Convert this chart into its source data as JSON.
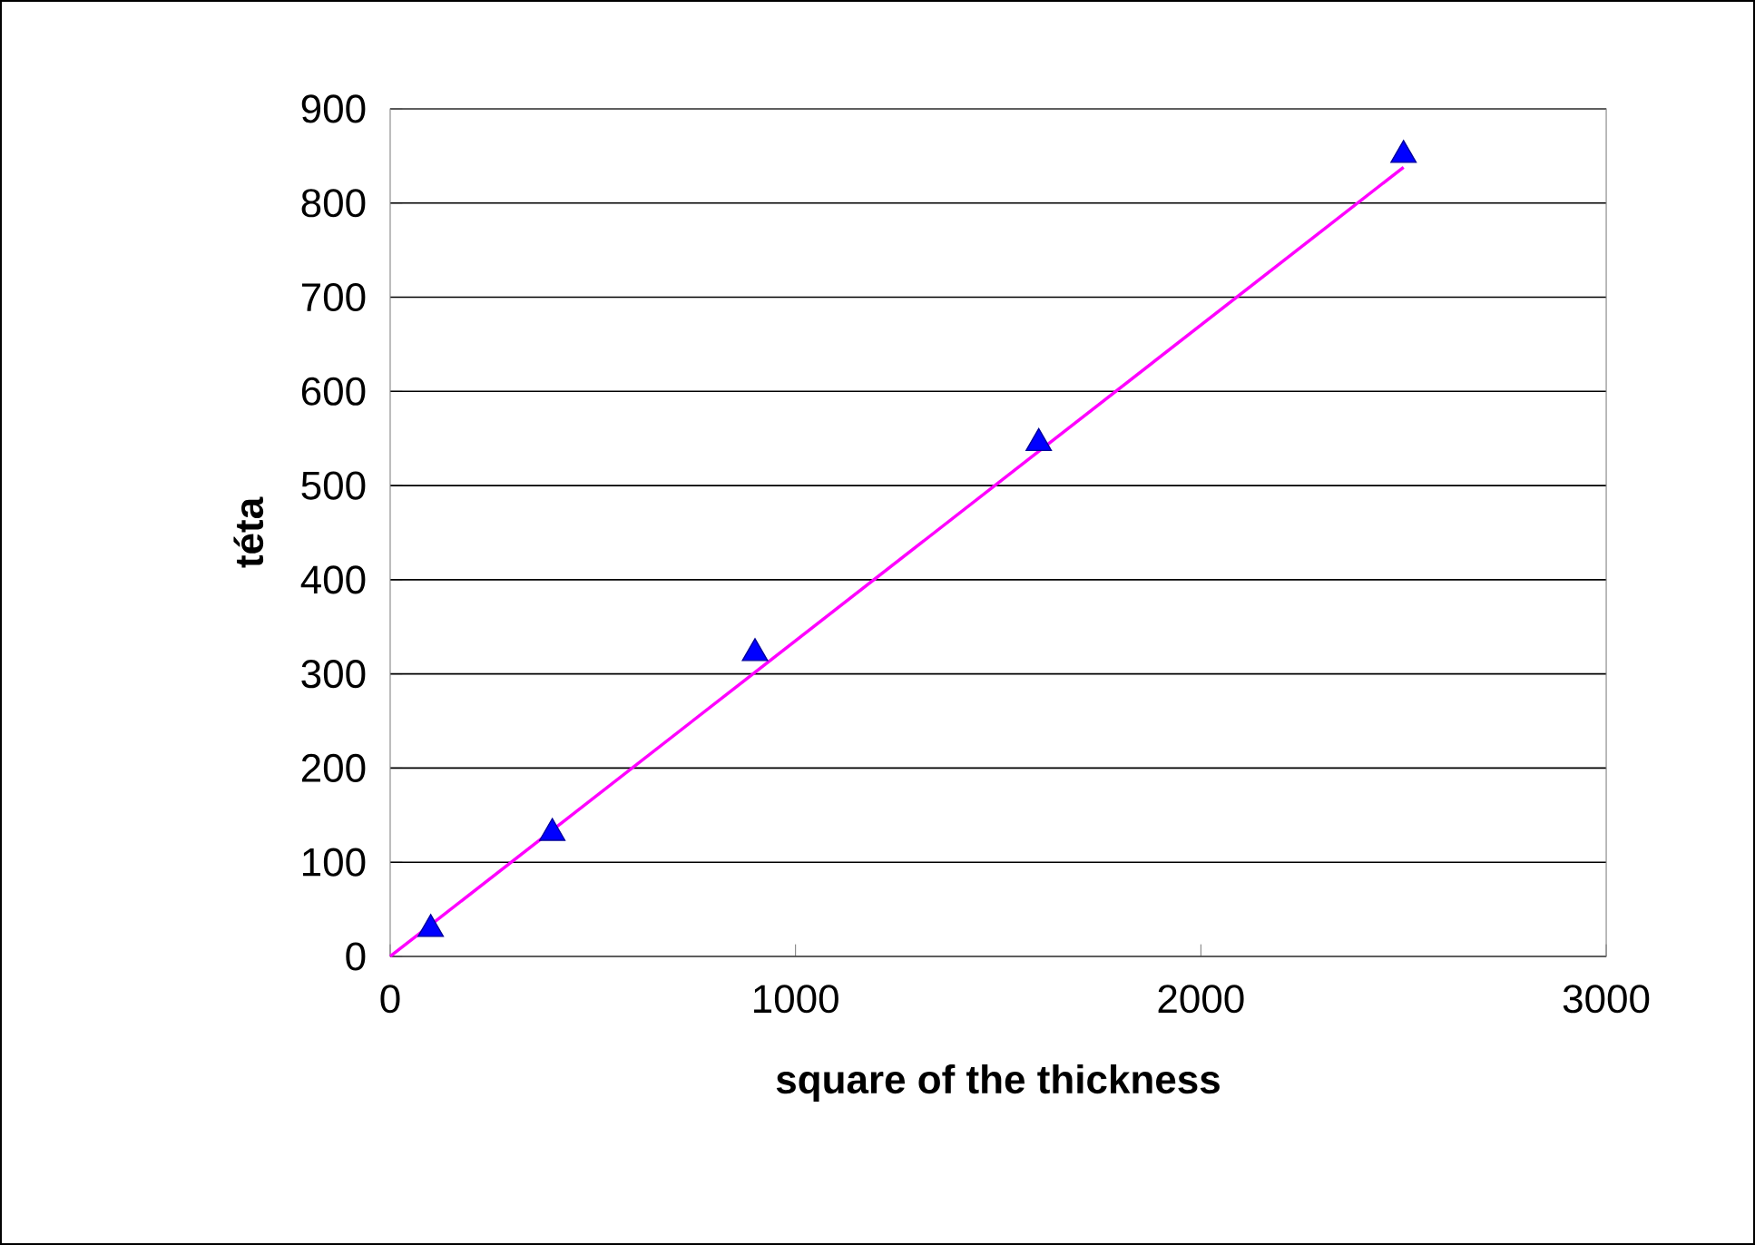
{
  "chart_data": {
    "type": "scatter",
    "xlabel": "square of the thickness",
    "ylabel": "téta",
    "xlim": [
      0,
      3000
    ],
    "xticks": [
      0,
      1000,
      2000,
      3000
    ],
    "ylim": [
      0,
      900
    ],
    "yticks": [
      0,
      100,
      200,
      300,
      400,
      500,
      600,
      700,
      800,
      900
    ],
    "grid": "y",
    "series": [
      {
        "color": "#0000ff",
        "marker": "triangle",
        "x": [
          100,
          400,
          900,
          1600,
          2500
        ],
        "values": [
          29,
          131,
          322,
          545,
          851
        ]
      },
      {
        "type": "line",
        "color": "#ff00ff",
        "marker": "none",
        "line_style": "solid",
        "x": [
          0,
          2500
        ],
        "values": [
          0,
          838
        ]
      }
    ]
  }
}
